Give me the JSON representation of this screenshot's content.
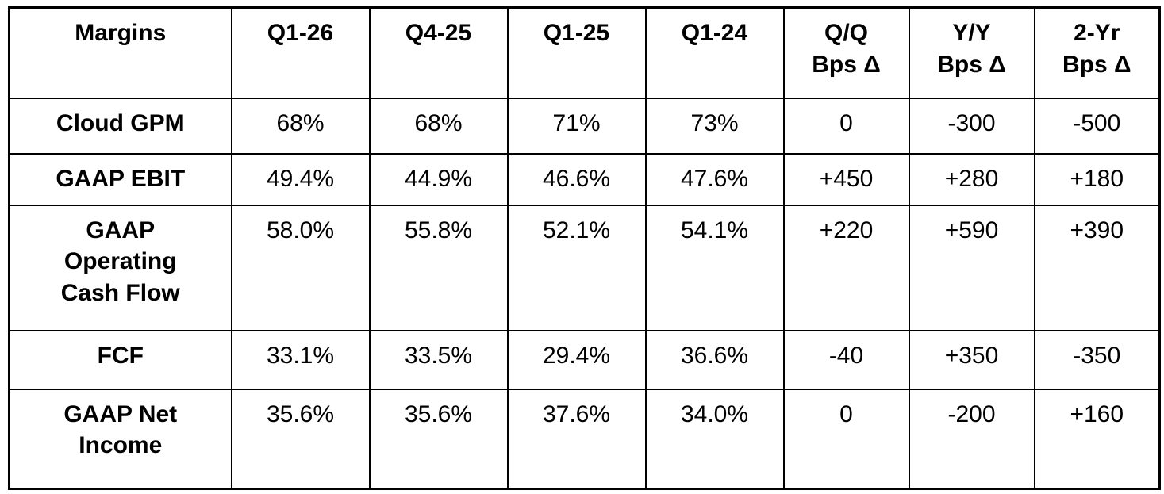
{
  "chart_data": {
    "type": "table",
    "title": "Margins",
    "columns": [
      "Margins",
      "Q1-26",
      "Q4-25",
      "Q1-25",
      "Q1-24",
      "Q/Q\nBps Δ",
      "Y/Y\nBps Δ",
      "2-Yr\nBps Δ"
    ],
    "rows": [
      {
        "label": "Cloud GPM",
        "values": [
          "68%",
          "68%",
          "71%",
          "73%",
          "0",
          "-300",
          "-500"
        ]
      },
      {
        "label": "GAAP EBIT",
        "values": [
          "49.4%",
          "44.9%",
          "46.6%",
          "47.6%",
          "+450",
          "+280",
          "+180"
        ]
      },
      {
        "label": "GAAP\nOperating\nCash Flow",
        "values": [
          "58.0%",
          "55.8%",
          "52.1%",
          "54.1%",
          "+220",
          "+590",
          "+390"
        ]
      },
      {
        "label": "FCF",
        "values": [
          "33.1%",
          "33.5%",
          "29.4%",
          "36.6%",
          "-40",
          "+350",
          "-350"
        ]
      },
      {
        "label": "GAAP Net\nIncome",
        "values": [
          "35.6%",
          "35.6%",
          "37.6%",
          "34.0%",
          "0",
          "-200",
          "+160"
        ]
      }
    ],
    "layout": {
      "grid": "on",
      "border_color": "#000000",
      "background_color": "#ffffff",
      "text_color": "#000000"
    }
  }
}
